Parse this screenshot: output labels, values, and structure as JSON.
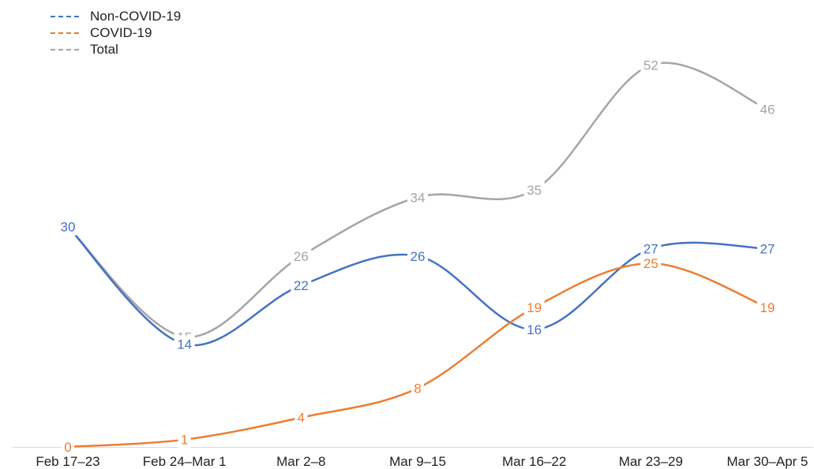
{
  "chart_data": {
    "type": "line",
    "categories": [
      "Feb 17–23",
      "Feb 24–Mar 1",
      "Mar 2–8",
      "Mar 9–15",
      "Mar 16–22",
      "Mar 23–29",
      "Mar 30–Apr 5"
    ],
    "series": [
      {
        "name": "Non-COVID-19",
        "color": "#4472C4",
        "values": [
          30,
          14,
          22,
          26,
          16,
          27,
          27
        ]
      },
      {
        "name": "COVID-19",
        "color": "#ED7D31",
        "values": [
          0,
          1,
          4,
          8,
          19,
          25,
          19
        ]
      },
      {
        "name": "Total",
        "color": "#A5A5A5",
        "values": [
          30,
          15,
          26,
          34,
          35,
          52,
          46
        ]
      }
    ],
    "ylim": [
      0,
      55
    ],
    "grid": false,
    "legend_position": "top-left",
    "data_labels": true,
    "smoothed": true
  }
}
